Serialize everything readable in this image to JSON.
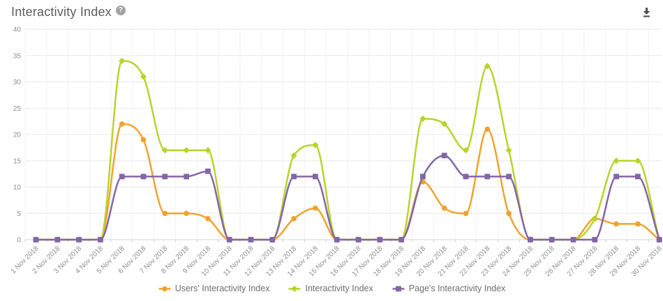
{
  "header": {
    "title": "Interactivity Index",
    "help_glyph": "?"
  },
  "chart_data": {
    "type": "line",
    "title": "Interactivity Index",
    "xlabel": "",
    "ylabel": "",
    "ylim": [
      0,
      40
    ],
    "yticks": [
      0,
      5,
      10,
      15,
      20,
      25,
      30,
      35,
      40
    ],
    "grid": true,
    "legend_position": "bottom",
    "categories": [
      "1 Nov 2018",
      "2 Nov 2018",
      "3 Nov 2018",
      "4 Nov 2018",
      "5 Nov 2018",
      "6 Nov 2018",
      "7 Nov 2018",
      "8 Nov 2018",
      "9 Nov 2018",
      "10 Nov 2018",
      "11 Nov 2018",
      "12 Nov 2018",
      "13 Nov 2018",
      "14 Nov 2018",
      "15 Nov 2018",
      "16 Nov 2018",
      "17 Nov 2018",
      "18 Nov 2018",
      "19 Nov 2018",
      "20 Nov 2018",
      "21 Nov 2018",
      "22 Nov 2018",
      "23 Nov 2018",
      "24 Nov 2018",
      "25 Nov 2018",
      "26 Nov 2018",
      "27 Nov 2018",
      "28 Nov 2018",
      "29 Nov 2018",
      "30 Nov 2018"
    ],
    "series": [
      {
        "name": "Users' Interactivity Index",
        "color": "#f0a22e",
        "marker": "circle",
        "values": [
          0,
          0,
          0,
          0,
          22,
          19,
          5,
          5,
          4,
          0,
          0,
          0,
          4,
          6,
          0,
          0,
          0,
          0,
          11,
          6,
          5,
          21,
          5,
          0,
          0,
          0,
          4,
          3,
          3,
          0
        ]
      },
      {
        "name": "Interactivity Index",
        "color": "#b9d32c",
        "marker": "diamond",
        "values": [
          0,
          0,
          0,
          0,
          34,
          31,
          17,
          17,
          17,
          0,
          0,
          0,
          16,
          18,
          0,
          0,
          0,
          0,
          23,
          22,
          17,
          33,
          17,
          0,
          0,
          0,
          4,
          15,
          15,
          0
        ]
      },
      {
        "name": "Page's Interactivity Index",
        "color": "#8465a6",
        "marker": "square",
        "values": [
          0,
          0,
          0,
          0,
          12,
          12,
          12,
          12,
          13,
          0,
          0,
          0,
          12,
          12,
          0,
          0,
          0,
          0,
          12,
          16,
          12,
          12,
          12,
          0,
          0,
          0,
          0,
          12,
          12,
          0
        ]
      }
    ],
    "axis_colors": {
      "axis_line": "#ccd6eb",
      "h_gridline": "#e8e8e8",
      "v_gridline": "#f2f2f2",
      "label": "#8d8d8d"
    }
  }
}
